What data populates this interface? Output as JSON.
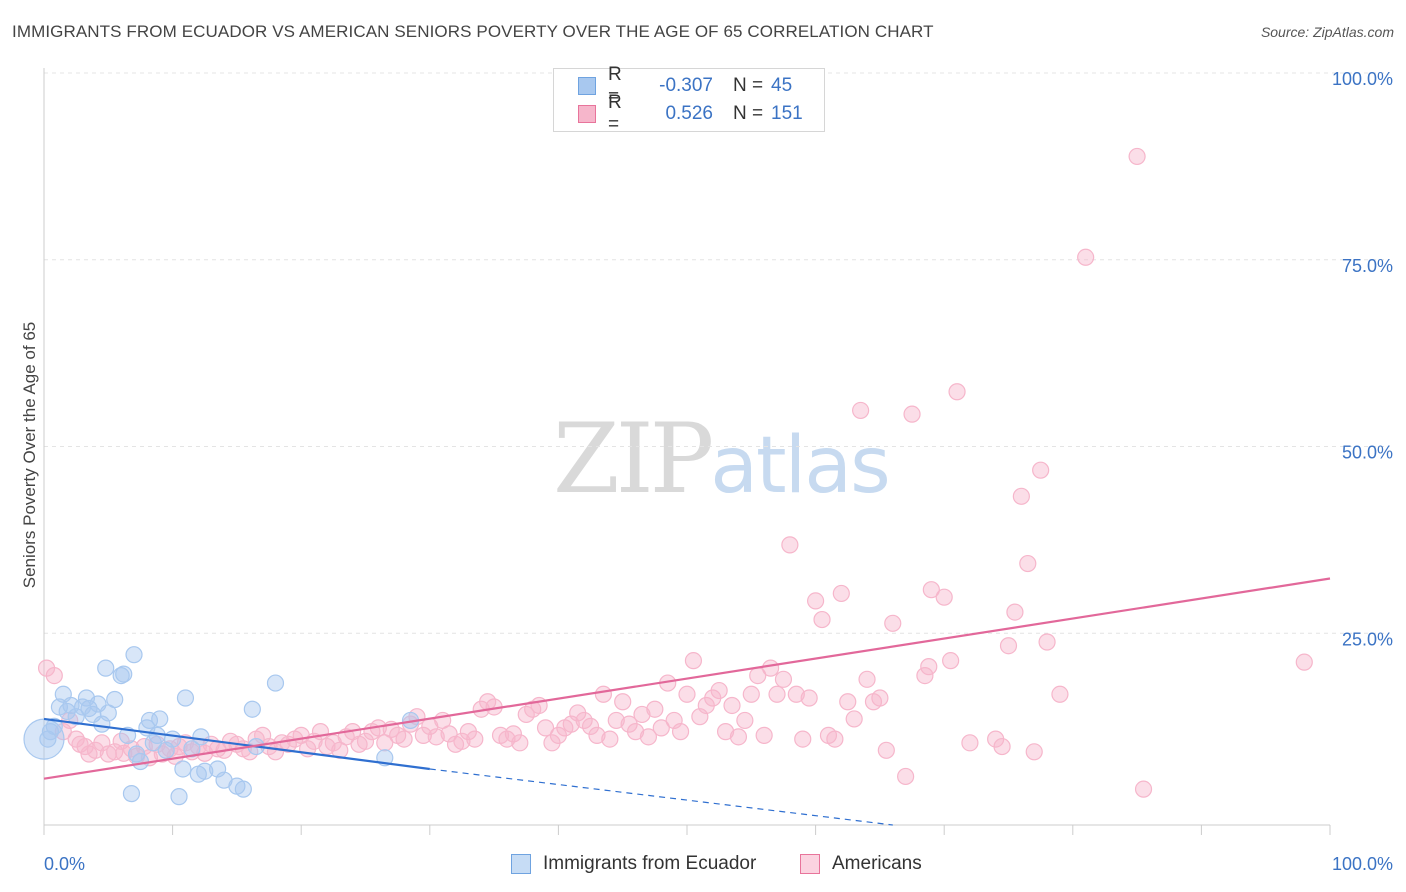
{
  "header": {
    "title": "IMMIGRANTS FROM ECUADOR VS AMERICAN SENIORS POVERTY OVER THE AGE OF 65 CORRELATION CHART",
    "source": "Source: ZipAtlas.com"
  },
  "legend": {
    "rows": [
      {
        "r_label": "R =",
        "r_value": "-0.307",
        "n_label": "N =",
        "n_value": "45",
        "color": "#a8c8ef"
      },
      {
        "r_label": "R =",
        "r_value": "0.526",
        "n_label": "N =",
        "n_value": "151",
        "color": "#f6b6cb"
      }
    ]
  },
  "bottom_legend": {
    "items": [
      {
        "label": "Immigrants from Ecuador",
        "color": "#a8c8ef"
      },
      {
        "label": "Americans",
        "color": "#f6b6cb"
      }
    ]
  },
  "watermark": {
    "zip": "ZIP",
    "atlas": "atlas"
  },
  "chart_data": {
    "type": "scatter",
    "title": "IMMIGRANTS FROM ECUADOR VS AMERICAN SENIORS POVERTY OVER THE AGE OF 65 CORRELATION CHART",
    "xlabel": "",
    "ylabel": "Seniors Poverty Over the Age of 65",
    "xlim": [
      0,
      100
    ],
    "ylim": [
      0,
      100
    ],
    "x_tick_labels": [
      "0.0%",
      "100.0%"
    ],
    "y_tick_labels": [
      "25.0%",
      "50.0%",
      "75.0%",
      "100.0%"
    ],
    "y_ticks": [
      25,
      50,
      75,
      100
    ],
    "grid": true,
    "legend_position": "top-center",
    "series": [
      {
        "name": "Immigrants from Ecuador",
        "color": "#6fa3e0",
        "fill": "#a8c8ef",
        "trend": {
          "x0": 0,
          "y0": 14.2,
          "x1": 30,
          "y1": 7.5,
          "dashed_to_x": 66,
          "dashed_to_y": 0
        },
        "points": [
          [
            0.3,
            11.5
          ],
          [
            0.5,
            12.5
          ],
          [
            0.8,
            13.2
          ],
          [
            1.2,
            15.8
          ],
          [
            1.5,
            17.5
          ],
          [
            1.8,
            15.2
          ],
          [
            2.1,
            16.0
          ],
          [
            2.5,
            14.5
          ],
          [
            3.0,
            15.8
          ],
          [
            3.3,
            17.0
          ],
          [
            3.5,
            15.6
          ],
          [
            4.2,
            16.2
          ],
          [
            4.5,
            13.5
          ],
          [
            3.8,
            14.8
          ],
          [
            4.8,
            21.0
          ],
          [
            5.0,
            15.0
          ],
          [
            5.5,
            16.8
          ],
          [
            6.0,
            20.0
          ],
          [
            6.2,
            20.2
          ],
          [
            6.5,
            12.0
          ],
          [
            6.8,
            4.2
          ],
          [
            7.0,
            22.8
          ],
          [
            7.2,
            9.5
          ],
          [
            7.5,
            8.5
          ],
          [
            8.0,
            13.0
          ],
          [
            8.2,
            14.0
          ],
          [
            8.5,
            11.0
          ],
          [
            8.8,
            12.0
          ],
          [
            9.0,
            14.2
          ],
          [
            9.5,
            10.0
          ],
          [
            10.0,
            11.5
          ],
          [
            10.5,
            3.8
          ],
          [
            10.8,
            7.5
          ],
          [
            11.0,
            17.0
          ],
          [
            11.5,
            10.2
          ],
          [
            12.0,
            6.8
          ],
          [
            12.5,
            7.2
          ],
          [
            12.2,
            11.8
          ],
          [
            13.5,
            7.5
          ],
          [
            14.0,
            6.0
          ],
          [
            15.0,
            5.2
          ],
          [
            15.5,
            4.8
          ],
          [
            16.2,
            15.5
          ],
          [
            16.5,
            10.5
          ],
          [
            18.0,
            19.0
          ],
          [
            28.5,
            14.0
          ],
          [
            26.5,
            9.0
          ]
        ]
      },
      {
        "name": "Americans",
        "color": "#e8749b",
        "fill": "#f6b6cb",
        "trend": {
          "x0": 0,
          "y0": 6.2,
          "x1": 100,
          "y1": 33.0
        },
        "points": [
          [
            0.2,
            21.0
          ],
          [
            0.8,
            20.0
          ],
          [
            1.5,
            12.5
          ],
          [
            2.0,
            14.0
          ],
          [
            2.5,
            11.5
          ],
          [
            2.8,
            10.8
          ],
          [
            3.2,
            10.5
          ],
          [
            3.5,
            9.5
          ],
          [
            4.0,
            10.0
          ],
          [
            4.5,
            11.0
          ],
          [
            5.0,
            9.5
          ],
          [
            5.5,
            9.8
          ],
          [
            6.0,
            11.2
          ],
          [
            6.2,
            9.6
          ],
          [
            6.8,
            10.2
          ],
          [
            7.2,
            9.2
          ],
          [
            7.8,
            10.5
          ],
          [
            8.2,
            9.0
          ],
          [
            8.8,
            10.8
          ],
          [
            9.2,
            9.5
          ],
          [
            9.8,
            10.2
          ],
          [
            10.2,
            9.2
          ],
          [
            10.5,
            10.5
          ],
          [
            11.0,
            11.0
          ],
          [
            11.5,
            9.8
          ],
          [
            12.0,
            10.5
          ],
          [
            12.5,
            9.6
          ],
          [
            13.0,
            10.8
          ],
          [
            13.5,
            10.2
          ],
          [
            14.0,
            10.0
          ],
          [
            14.5,
            11.2
          ],
          [
            15.0,
            10.8
          ],
          [
            15.5,
            10.2
          ],
          [
            16.0,
            9.8
          ],
          [
            16.5,
            11.5
          ],
          [
            17.0,
            12.0
          ],
          [
            17.5,
            10.5
          ],
          [
            18.0,
            9.8
          ],
          [
            18.5,
            11.0
          ],
          [
            19.0,
            10.8
          ],
          [
            19.5,
            11.5
          ],
          [
            20.0,
            12.0
          ],
          [
            20.5,
            10.2
          ],
          [
            21.0,
            11.2
          ],
          [
            21.5,
            12.5
          ],
          [
            22.0,
            10.5
          ],
          [
            22.5,
            11.0
          ],
          [
            23.0,
            10.0
          ],
          [
            23.5,
            11.8
          ],
          [
            24.0,
            12.5
          ],
          [
            24.5,
            10.8
          ],
          [
            25.0,
            11.2
          ],
          [
            25.5,
            12.5
          ],
          [
            26.0,
            13.0
          ],
          [
            26.5,
            11.0
          ],
          [
            27.0,
            12.8
          ],
          [
            27.5,
            12.0
          ],
          [
            28.0,
            11.5
          ],
          [
            28.5,
            13.5
          ],
          [
            29.0,
            14.5
          ],
          [
            29.5,
            12.0
          ],
          [
            30.0,
            13.2
          ],
          [
            30.5,
            11.8
          ],
          [
            31.0,
            14.0
          ],
          [
            31.5,
            12.2
          ],
          [
            32.0,
            10.8
          ],
          [
            32.5,
            11.2
          ],
          [
            33.0,
            12.5
          ],
          [
            33.5,
            11.5
          ],
          [
            34.0,
            15.5
          ],
          [
            34.5,
            16.5
          ],
          [
            35.0,
            15.8
          ],
          [
            35.5,
            12.0
          ],
          [
            36.0,
            11.5
          ],
          [
            36.5,
            12.2
          ],
          [
            37.0,
            11.0
          ],
          [
            37.5,
            14.8
          ],
          [
            38.0,
            15.5
          ],
          [
            38.5,
            16.0
          ],
          [
            39.0,
            13.0
          ],
          [
            39.5,
            11.0
          ],
          [
            40.0,
            12.0
          ],
          [
            40.5,
            13.0
          ],
          [
            41.0,
            13.5
          ],
          [
            41.5,
            15.0
          ],
          [
            42.0,
            14.0
          ],
          [
            42.5,
            13.2
          ],
          [
            43.0,
            12.0
          ],
          [
            43.5,
            17.5
          ],
          [
            44.0,
            11.5
          ],
          [
            44.5,
            14.0
          ],
          [
            45.0,
            16.5
          ],
          [
            45.5,
            13.5
          ],
          [
            46.0,
            12.5
          ],
          [
            46.5,
            14.8
          ],
          [
            47.0,
            11.8
          ],
          [
            47.5,
            15.5
          ],
          [
            48.0,
            13.0
          ],
          [
            48.5,
            19.0
          ],
          [
            49.0,
            14.0
          ],
          [
            49.5,
            12.5
          ],
          [
            50.0,
            17.5
          ],
          [
            50.5,
            22.0
          ],
          [
            51.0,
            14.5
          ],
          [
            51.5,
            16.0
          ],
          [
            52.0,
            17.0
          ],
          [
            52.5,
            18.0
          ],
          [
            53.0,
            12.5
          ],
          [
            53.5,
            16.0
          ],
          [
            54.0,
            11.8
          ],
          [
            54.5,
            14.0
          ],
          [
            55.0,
            17.5
          ],
          [
            55.5,
            20.0
          ],
          [
            56.0,
            12.0
          ],
          [
            56.5,
            21.0
          ],
          [
            57.0,
            17.5
          ],
          [
            57.5,
            19.5
          ],
          [
            58.0,
            37.5
          ],
          [
            58.5,
            17.5
          ],
          [
            59.0,
            11.5
          ],
          [
            59.5,
            17.0
          ],
          [
            60.0,
            30.0
          ],
          [
            60.5,
            27.5
          ],
          [
            61.0,
            12.0
          ],
          [
            61.5,
            11.5
          ],
          [
            62.0,
            31.0
          ],
          [
            62.5,
            16.5
          ],
          [
            63.0,
            14.2
          ],
          [
            63.5,
            55.5
          ],
          [
            64.0,
            19.5
          ],
          [
            64.5,
            16.5
          ],
          [
            65.0,
            17.0
          ],
          [
            65.5,
            10.0
          ],
          [
            66.0,
            27.0
          ],
          [
            67.0,
            6.5
          ],
          [
            67.5,
            55.0
          ],
          [
            68.5,
            20.0
          ],
          [
            68.8,
            21.2
          ],
          [
            69.0,
            31.5
          ],
          [
            70.0,
            30.5
          ],
          [
            70.5,
            22.0
          ],
          [
            71.0,
            58.0
          ],
          [
            72.0,
            11.0
          ],
          [
            74.0,
            11.5
          ],
          [
            74.5,
            10.5
          ],
          [
            75.0,
            24.0
          ],
          [
            75.5,
            28.5
          ],
          [
            76.0,
            44.0
          ],
          [
            76.5,
            35.0
          ],
          [
            77.0,
            9.8
          ],
          [
            77.5,
            47.5
          ],
          [
            78.0,
            24.5
          ],
          [
            79.0,
            17.5
          ],
          [
            81.0,
            76.0
          ],
          [
            85.0,
            89.5
          ],
          [
            85.5,
            4.8
          ],
          [
            98.0,
            21.8
          ]
        ]
      }
    ]
  }
}
